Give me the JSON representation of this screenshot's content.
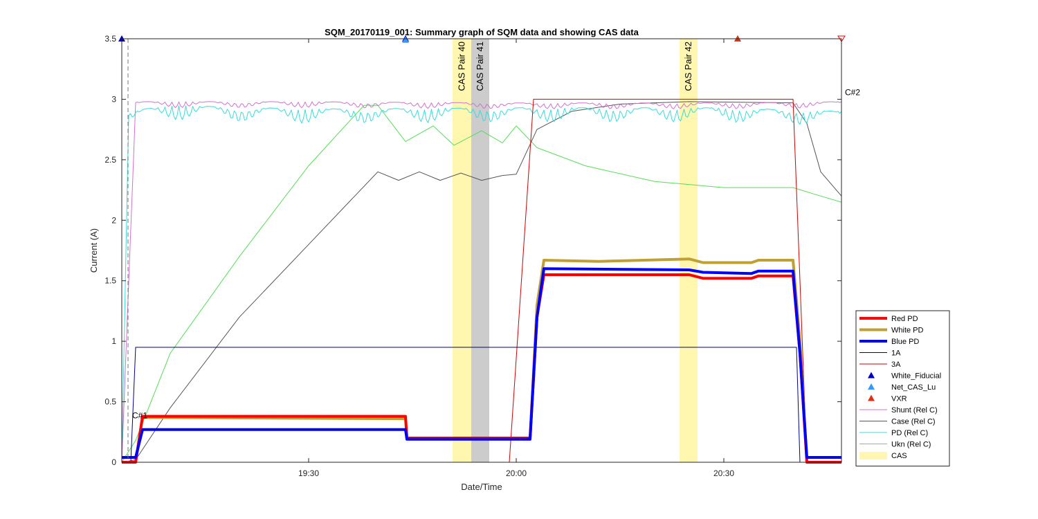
{
  "chart_data": {
    "type": "line",
    "title": "SQM_20170119_001: Summary graph of SQM data and showing CAS data",
    "xlabel": "Date/Time",
    "ylabel": "Current (A)",
    "xlim": [
      "19:03",
      "20:47"
    ],
    "ylim": [
      0,
      3.5
    ],
    "x_ticks": [
      "19:30",
      "20:00",
      "20:30"
    ],
    "y_ticks": [
      "0",
      "0.5",
      "1",
      "1.5",
      "2",
      "2.5",
      "3",
      "3.5"
    ],
    "grid": false,
    "legend_position": "right",
    "cas_bands": [
      {
        "label": "CAS Pair 40",
        "start": "19:50.8",
        "end": "19:53.5",
        "color": "#fff7b0"
      },
      {
        "label": "CAS Pair 41",
        "start": "19:53.5",
        "end": "19:56.1",
        "color": "#cccccc"
      },
      {
        "label": "CAS Pair 42",
        "start": "20:23.6",
        "end": "20:26.2",
        "color": "#fff7b0"
      }
    ],
    "annotations": [
      {
        "text": "C#1",
        "x": "19:04.5",
        "y": 0.33
      },
      {
        "text": "C#2",
        "x": "20:47.5",
        "y": 3.0
      }
    ],
    "series": [
      {
        "name": "Red PD",
        "color": "#ff0000",
        "style": "thick",
        "points": [
          [
            "19:03",
            0.0
          ],
          [
            "19:05",
            0.0
          ],
          [
            "19:06",
            0.38
          ],
          [
            "19:44",
            0.38
          ],
          [
            "19:44.2",
            0.2
          ],
          [
            "20:02",
            0.2
          ],
          [
            "20:03",
            1.2
          ],
          [
            "20:04",
            1.55
          ],
          [
            "20:25",
            1.55
          ],
          [
            "20:27",
            1.52
          ],
          [
            "20:34",
            1.52
          ],
          [
            "20:35",
            1.54
          ],
          [
            "20:40",
            1.54
          ],
          [
            "20:41",
            0.9
          ],
          [
            "20:42",
            0.0
          ],
          [
            "20:47",
            0.0
          ]
        ]
      },
      {
        "name": "White PD",
        "color": "#c0a030",
        "style": "thick",
        "points": [
          [
            "19:03",
            0.0
          ],
          [
            "19:05",
            0.0
          ],
          [
            "19:06",
            0.37
          ],
          [
            "19:44",
            0.36
          ],
          [
            "19:44.2",
            0.2
          ],
          [
            "20:02",
            0.2
          ],
          [
            "20:03",
            1.3
          ],
          [
            "20:04",
            1.67
          ],
          [
            "20:12",
            1.66
          ],
          [
            "20:25",
            1.68
          ],
          [
            "20:27",
            1.65
          ],
          [
            "20:34",
            1.65
          ],
          [
            "20:35",
            1.67
          ],
          [
            "20:40",
            1.67
          ],
          [
            "20:41",
            1.0
          ],
          [
            "20:42",
            0.0
          ],
          [
            "20:47",
            0.0
          ]
        ]
      },
      {
        "name": "Blue PD",
        "color": "#0000ff",
        "style": "thick",
        "points": [
          [
            "19:03",
            0.04
          ],
          [
            "19:05",
            0.04
          ],
          [
            "19:06",
            0.27
          ],
          [
            "19:44",
            0.27
          ],
          [
            "19:44.2",
            0.19
          ],
          [
            "20:02",
            0.19
          ],
          [
            "20:03",
            1.2
          ],
          [
            "20:04",
            1.6
          ],
          [
            "20:25",
            1.59
          ],
          [
            "20:27",
            1.57
          ],
          [
            "20:34",
            1.56
          ],
          [
            "20:35",
            1.58
          ],
          [
            "20:40",
            1.58
          ],
          [
            "20:41",
            0.9
          ],
          [
            "20:42",
            0.04
          ],
          [
            "20:47",
            0.04
          ]
        ]
      },
      {
        "name": "1A",
        "color": "#000080",
        "style": "thin",
        "points": [
          [
            "19:03",
            0.0
          ],
          [
            "19:04.3",
            0.0
          ],
          [
            "19:05",
            0.95
          ],
          [
            "20:40.5",
            0.95
          ],
          [
            "20:41",
            0.0
          ],
          [
            "20:47",
            0.0
          ]
        ]
      },
      {
        "name": "3A",
        "color": "#cc0000",
        "style": "thin",
        "points": [
          [
            "19:03",
            0.0
          ],
          [
            "19:59",
            0.0
          ],
          [
            "20:02.5",
            3.0
          ],
          [
            "20:40",
            3.0
          ],
          [
            "20:42",
            0.0
          ],
          [
            "20:47",
            0.0
          ]
        ]
      },
      {
        "name": "White_Fiducial",
        "color": "#0000c0",
        "style": "marker-up",
        "points": [
          [
            "19:03",
            3.5
          ],
          [
            "19:44",
            3.5
          ]
        ]
      },
      {
        "name": "Net_CAS_Lu",
        "color": "#3399ff",
        "style": "marker-up",
        "points": [
          [
            "19:44",
            3.49
          ],
          [
            "20:32",
            3.5
          ]
        ]
      },
      {
        "name": "VXR",
        "color": "#e03010",
        "style": "marker-up",
        "points": [
          [
            "20:32",
            3.5
          ]
        ]
      },
      {
        "name": "Shunt (Rel C)",
        "color": "#d070d0",
        "style": "thin",
        "points": [
          [
            "19:03",
            0.0
          ],
          [
            "19:04",
            1.5
          ],
          [
            "19:05",
            2.98
          ],
          [
            "19:30",
            2.98
          ],
          [
            "20:00",
            2.97
          ],
          [
            "20:30",
            2.97
          ],
          [
            "20:47",
            2.98
          ]
        ]
      },
      {
        "name": "Case (Rel C)",
        "color": "#555555",
        "style": "thin",
        "points": [
          [
            "19:03",
            0.0
          ],
          [
            "19:05",
            0.02
          ],
          [
            "19:10",
            0.45
          ],
          [
            "19:20",
            1.2
          ],
          [
            "19:30",
            1.8
          ],
          [
            "19:40",
            2.4
          ],
          [
            "19:43",
            2.33
          ],
          [
            "19:46",
            2.4
          ],
          [
            "19:49",
            2.33
          ],
          [
            "19:52",
            2.39
          ],
          [
            "19:55",
            2.33
          ],
          [
            "19:58",
            2.37
          ],
          [
            "20:00",
            2.38
          ],
          [
            "20:03",
            2.75
          ],
          [
            "20:08",
            2.9
          ],
          [
            "20:15",
            2.96
          ],
          [
            "20:25",
            2.98
          ],
          [
            "20:40",
            2.97
          ],
          [
            "20:42",
            2.8
          ],
          [
            "20:44",
            2.4
          ],
          [
            "20:47",
            2.2
          ]
        ]
      },
      {
        "name": "PD (Rel C)",
        "color": "#33dddd",
        "style": "thin",
        "points": [
          [
            "19:03",
            0.0
          ],
          [
            "19:04",
            2.9
          ],
          [
            "19:10",
            2.95
          ],
          [
            "19:30",
            2.92
          ],
          [
            "20:00",
            2.93
          ],
          [
            "20:30",
            2.93
          ],
          [
            "20:47",
            2.9
          ]
        ]
      },
      {
        "name": "Ukn (Rel C)",
        "color": "#55dd55",
        "style": "thin",
        "points": [
          [
            "19:03",
            0.0
          ],
          [
            "19:05",
            0.18
          ],
          [
            "19:10",
            0.9
          ],
          [
            "19:20",
            1.7
          ],
          [
            "19:30",
            2.45
          ],
          [
            "19:38",
            2.95
          ],
          [
            "19:40",
            2.95
          ],
          [
            "19:44",
            2.65
          ],
          [
            "19:48",
            2.78
          ],
          [
            "19:51",
            2.62
          ],
          [
            "19:55",
            2.74
          ],
          [
            "19:58",
            2.64
          ],
          [
            "20:00",
            2.78
          ],
          [
            "20:03",
            2.6
          ],
          [
            "20:10",
            2.45
          ],
          [
            "20:20",
            2.32
          ],
          [
            "20:30",
            2.27
          ],
          [
            "20:40",
            2.27
          ],
          [
            "20:44",
            2.2
          ],
          [
            "20:47",
            2.15
          ]
        ]
      },
      {
        "name": "CAS",
        "color": "#fff7b0",
        "style": "patch",
        "points": []
      }
    ]
  }
}
